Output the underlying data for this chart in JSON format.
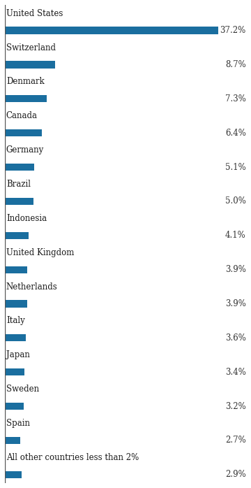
{
  "categories": [
    "United States",
    "Switzerland",
    "Denmark",
    "Canada",
    "Germany",
    "Brazil",
    "Indonesia",
    "United Kingdom",
    "Netherlands",
    "Italy",
    "Japan",
    "Sweden",
    "Spain",
    "All other countries less than 2%"
  ],
  "values": [
    37.2,
    8.7,
    7.3,
    6.4,
    5.1,
    5.0,
    4.1,
    3.9,
    3.9,
    3.6,
    3.4,
    3.2,
    2.7,
    2.9
  ],
  "bar_color": "#1a6e9f",
  "label_color": "#1a1a1a",
  "value_color": "#333333",
  "background_color": "#ffffff",
  "left_line_color": "#555555",
  "label_fontsize": 8.5,
  "value_fontsize": 8.5,
  "bar_height": 0.42,
  "xlim": [
    0,
    42
  ]
}
